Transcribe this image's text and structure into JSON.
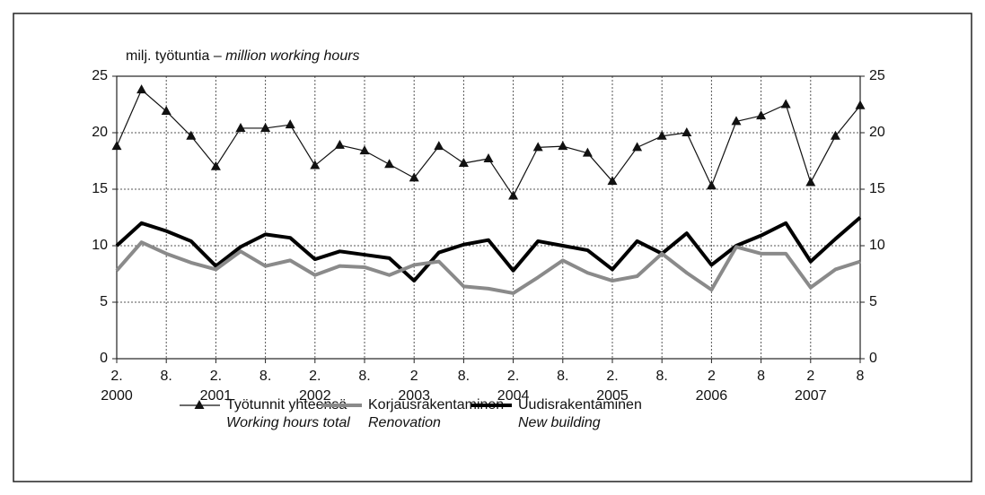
{
  "chart_data": {
    "type": "line",
    "y_label": "milj. työtuntia – ",
    "y_label_en": "million working hours",
    "categories": [
      "2.",
      null,
      "8.",
      null,
      "2.",
      null,
      "8.",
      null,
      "2.",
      null,
      "8.",
      null,
      "2",
      null,
      "8.",
      null,
      "2.",
      null,
      "8.",
      null,
      "2.",
      null,
      "8.",
      null,
      "2",
      null,
      "8",
      null,
      "2",
      null,
      "8"
    ],
    "years": [
      "2000",
      "2001",
      "2002",
      "2003",
      "2004",
      "2005",
      "2006",
      "2007"
    ],
    "ylim": [
      0,
      25
    ],
    "yticks": [
      0,
      5,
      10,
      15,
      20,
      25
    ],
    "y2lim": [
      0,
      25
    ],
    "y2ticks": [
      0,
      5,
      10,
      15,
      20,
      25
    ],
    "grid": true,
    "series": [
      {
        "name": "Työtunnit yhteensä",
        "name_en": "Working hours total",
        "color": "#111111",
        "marker": "triangle",
        "width": 1.2,
        "values": [
          18.8,
          23.8,
          21.9,
          19.7,
          17.0,
          20.4,
          20.4,
          20.7,
          17.1,
          18.9,
          18.4,
          17.2,
          16.0,
          18.8,
          17.3,
          17.7,
          14.4,
          18.7,
          18.8,
          18.2,
          15.7,
          18.7,
          19.7,
          20.0,
          15.3,
          21.0,
          21.5,
          22.5,
          15.6,
          19.7,
          22.4
        ]
      },
      {
        "name": "Korjausrakentaminen",
        "name_en": "Renovation",
        "color": "#8a8a8a",
        "marker": "none",
        "width": 4,
        "values": [
          7.8,
          10.3,
          9.3,
          8.5,
          7.9,
          9.5,
          8.2,
          8.7,
          7.4,
          8.2,
          8.1,
          7.4,
          8.3,
          8.6,
          6.4,
          6.2,
          5.8,
          7.2,
          8.7,
          7.6,
          6.9,
          7.3,
          9.3,
          7.6,
          6.1,
          9.9,
          9.3,
          9.3,
          6.3,
          7.9,
          8.6
        ]
      },
      {
        "name": "Uudisrakentaminen",
        "name_en": "New building",
        "color": "#000000",
        "marker": "none",
        "width": 4,
        "values": [
          10.0,
          12.0,
          11.3,
          10.4,
          8.2,
          9.9,
          11.0,
          10.7,
          8.8,
          9.5,
          9.2,
          8.9,
          6.9,
          9.4,
          10.1,
          10.5,
          7.8,
          10.4,
          10.0,
          9.6,
          7.9,
          10.4,
          9.3,
          11.1,
          8.3,
          10.0,
          10.9,
          12.0,
          8.6,
          10.6,
          12.5
        ]
      }
    ]
  }
}
